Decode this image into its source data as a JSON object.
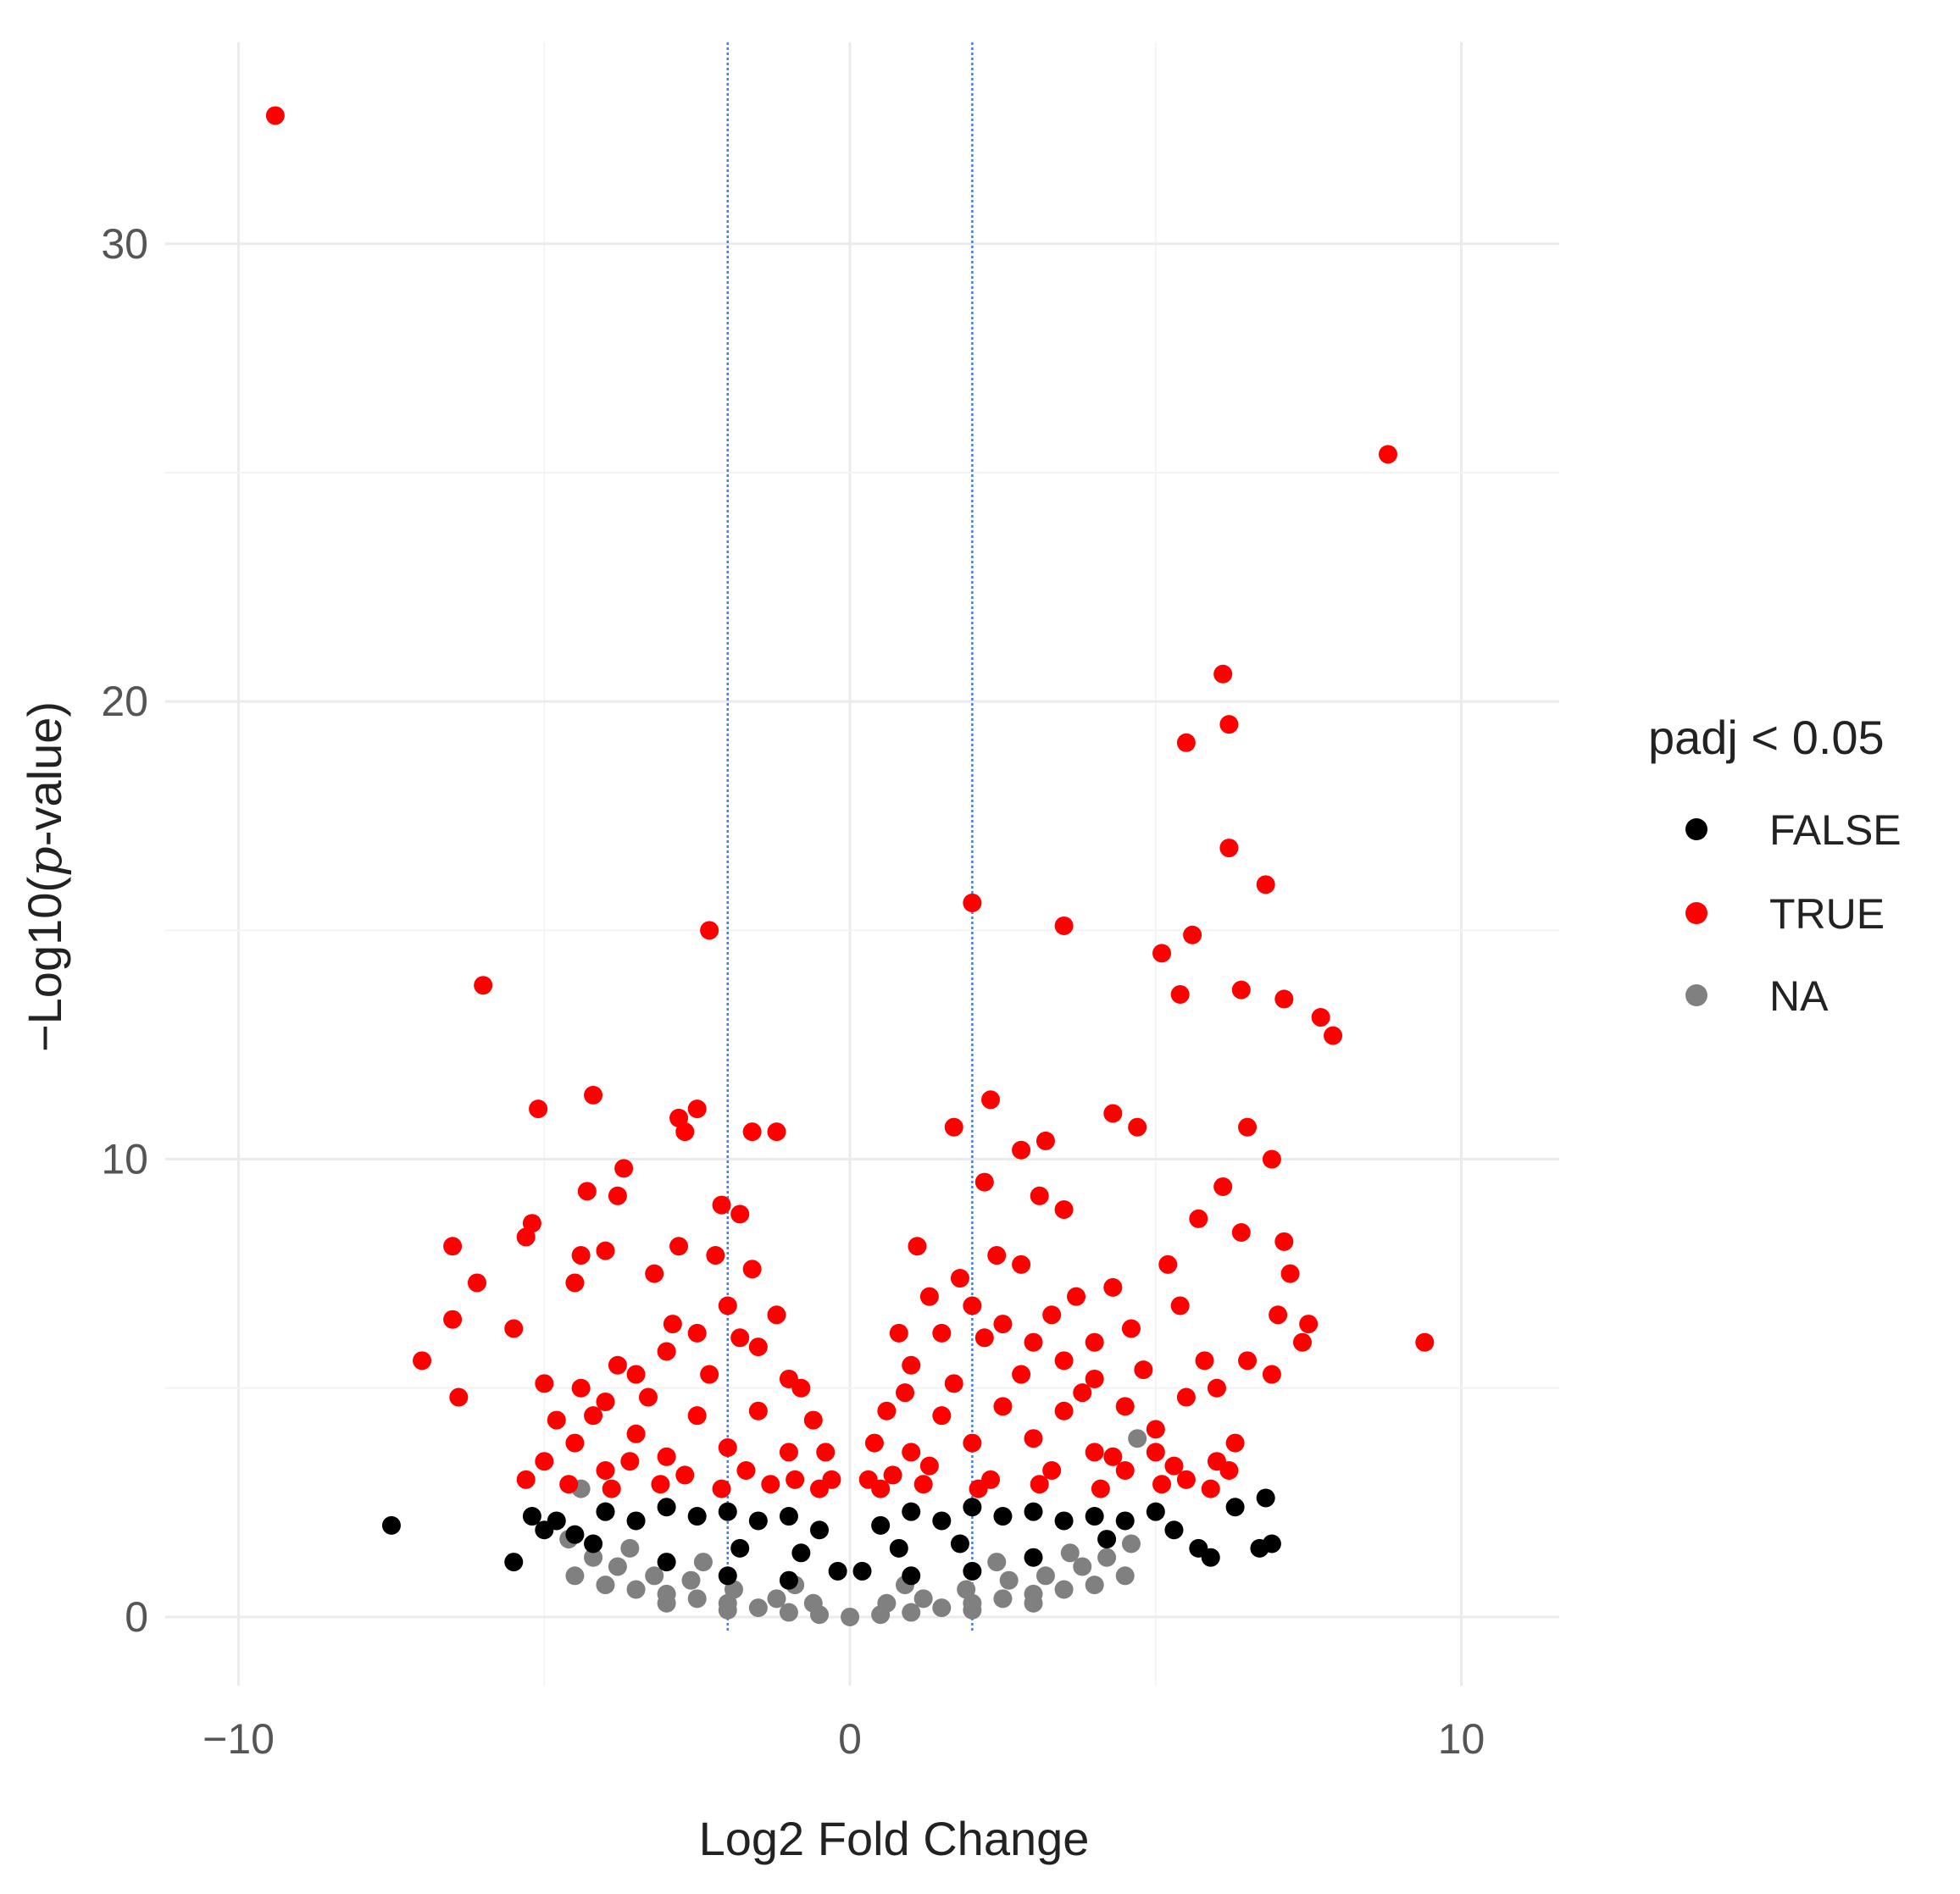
{
  "chart_data": {
    "type": "scatter",
    "title": "",
    "xlabel": "Log2 Fold Change",
    "ylabel_prefix": "−Log10(",
    "ylabel_italic": "p",
    "ylabel_suffix": "-value)",
    "xlim": [
      -11.2,
      11.6
    ],
    "ylim": [
      -1.5,
      34.4
    ],
    "xticks": [
      -10,
      0,
      10
    ],
    "xtick_labels": [
      "−10",
      "0",
      "10"
    ],
    "yticks": [
      0,
      10,
      20,
      30
    ],
    "ytick_labels": [
      "0",
      "10",
      "20",
      "30"
    ],
    "grid": true,
    "threshold_lines": {
      "x": [
        -2,
        2
      ],
      "color": "#4a7bd6",
      "style": "dotted"
    },
    "legend": {
      "title": "padj < 0.05",
      "placement": "right",
      "entries": [
        {
          "label": "FALSE",
          "color": "#000000"
        },
        {
          "label": "TRUE",
          "color": "#ff0000"
        },
        {
          "label": "NA",
          "color": "#808080"
        }
      ]
    },
    "series": [
      {
        "name": "FALSE",
        "color": "#000000",
        "points": [
          [
            -7.5,
            2.0
          ],
          [
            -5.5,
            1.2
          ],
          [
            -5.2,
            2.2
          ],
          [
            -5.0,
            1.9
          ],
          [
            -4.8,
            2.1
          ],
          [
            -4.5,
            1.8
          ],
          [
            -4.0,
            2.3
          ],
          [
            -3.5,
            2.1
          ],
          [
            -3.0,
            2.4
          ],
          [
            -2.5,
            2.2
          ],
          [
            -2.0,
            2.3
          ],
          [
            -1.5,
            2.1
          ],
          [
            -1.0,
            2.2
          ],
          [
            -0.5,
            1.9
          ],
          [
            -0.2,
            1.0
          ],
          [
            0.2,
            1.0
          ],
          [
            0.5,
            2.0
          ],
          [
            1.0,
            2.3
          ],
          [
            1.5,
            2.1
          ],
          [
            2.0,
            2.4
          ],
          [
            2.5,
            2.2
          ],
          [
            3.0,
            2.3
          ],
          [
            3.5,
            2.1
          ],
          [
            4.0,
            2.2
          ],
          [
            4.5,
            2.1
          ],
          [
            5.0,
            2.3
          ],
          [
            5.3,
            1.9
          ],
          [
            5.7,
            1.5
          ],
          [
            5.9,
            1.3
          ],
          [
            6.3,
            2.4
          ],
          [
            6.8,
            2.6
          ],
          [
            6.9,
            1.6
          ],
          [
            6.7,
            1.5
          ],
          [
            -3.0,
            1.2
          ],
          [
            -2.0,
            0.9
          ],
          [
            -1.0,
            0.8
          ],
          [
            1.0,
            0.9
          ],
          [
            2.0,
            1.0
          ],
          [
            3.0,
            1.3
          ],
          [
            -4.2,
            1.6
          ],
          [
            4.2,
            1.7
          ],
          [
            -1.8,
            1.5
          ],
          [
            1.8,
            1.6
          ],
          [
            -0.8,
            1.4
          ],
          [
            0.8,
            1.5
          ]
        ]
      },
      {
        "name": "TRUE",
        "color": "#ff0000",
        "points": [
          [
            -9.4,
            32.8
          ],
          [
            8.8,
            25.4
          ],
          [
            6.1,
            20.6
          ],
          [
            6.2,
            19.5
          ],
          [
            5.5,
            19.1
          ],
          [
            6.2,
            16.8
          ],
          [
            6.8,
            16.0
          ],
          [
            2.0,
            15.6
          ],
          [
            3.5,
            15.1
          ],
          [
            -2.3,
            15.0
          ],
          [
            5.6,
            14.9
          ],
          [
            5.1,
            14.5
          ],
          [
            -6.0,
            13.8
          ],
          [
            6.4,
            13.7
          ],
          [
            5.4,
            13.6
          ],
          [
            7.1,
            13.5
          ],
          [
            7.7,
            13.1
          ],
          [
            7.9,
            12.7
          ],
          [
            -5.1,
            11.1
          ],
          [
            -4.2,
            11.4
          ],
          [
            2.3,
            11.3
          ],
          [
            -2.5,
            11.1
          ],
          [
            4.3,
            11.0
          ],
          [
            -2.8,
            10.9
          ],
          [
            -2.7,
            10.6
          ],
          [
            1.7,
            10.7
          ],
          [
            -1.6,
            10.6
          ],
          [
            -1.2,
            10.6
          ],
          [
            4.7,
            10.7
          ],
          [
            6.5,
            10.7
          ],
          [
            3.2,
            10.4
          ],
          [
            2.8,
            10.2
          ],
          [
            6.9,
            10.0
          ],
          [
            -3.7,
            9.8
          ],
          [
            -4.3,
            9.3
          ],
          [
            -3.8,
            9.2
          ],
          [
            2.2,
            9.5
          ],
          [
            3.1,
            9.2
          ],
          [
            6.1,
            9.4
          ],
          [
            -2.1,
            9.0
          ],
          [
            -1.8,
            8.8
          ],
          [
            3.5,
            8.9
          ],
          [
            5.7,
            8.7
          ],
          [
            -6.5,
            8.1
          ],
          [
            -5.2,
            8.6
          ],
          [
            -5.3,
            8.3
          ],
          [
            -4.4,
            7.9
          ],
          [
            -4.0,
            8.0
          ],
          [
            7.1,
            8.2
          ],
          [
            -6.1,
            7.3
          ],
          [
            -4.5,
            7.3
          ],
          [
            7.2,
            7.5
          ],
          [
            -6.5,
            6.5
          ],
          [
            -5.5,
            6.3
          ],
          [
            7.0,
            6.6
          ],
          [
            7.5,
            6.4
          ],
          [
            -7.0,
            5.6
          ],
          [
            9.4,
            6.0
          ],
          [
            7.4,
            6.0
          ],
          [
            -6.4,
            4.8
          ],
          [
            -5.0,
            5.1
          ],
          [
            -4.4,
            5.0
          ],
          [
            -4.0,
            4.7
          ],
          [
            -3.5,
            5.3
          ],
          [
            -3.0,
            5.8
          ],
          [
            -2.5,
            6.2
          ],
          [
            -2.0,
            6.8
          ],
          [
            -1.5,
            5.9
          ],
          [
            -1.0,
            5.2
          ],
          [
            -0.6,
            4.3
          ],
          [
            -0.4,
            3.6
          ],
          [
            -0.3,
            3.0
          ],
          [
            0.3,
            3.0
          ],
          [
            0.4,
            3.8
          ],
          [
            0.6,
            4.5
          ],
          [
            1.0,
            5.5
          ],
          [
            1.5,
            6.2
          ],
          [
            2.0,
            6.8
          ],
          [
            2.5,
            6.4
          ],
          [
            3.0,
            6.0
          ],
          [
            3.5,
            5.6
          ],
          [
            4.0,
            5.2
          ],
          [
            4.5,
            4.6
          ],
          [
            5.0,
            4.1
          ],
          [
            5.5,
            4.8
          ],
          [
            6.0,
            5.0
          ],
          [
            6.5,
            5.6
          ],
          [
            6.9,
            5.3
          ],
          [
            -5.0,
            3.4
          ],
          [
            -4.5,
            3.8
          ],
          [
            -4.0,
            3.2
          ],
          [
            -3.5,
            4.0
          ],
          [
            -3.0,
            3.5
          ],
          [
            -2.5,
            4.4
          ],
          [
            -2.0,
            3.7
          ],
          [
            -1.5,
            4.5
          ],
          [
            -1.0,
            3.6
          ],
          [
            1.0,
            3.6
          ],
          [
            1.5,
            4.4
          ],
          [
            2.0,
            3.8
          ],
          [
            2.5,
            4.6
          ],
          [
            3.0,
            3.9
          ],
          [
            3.5,
            4.5
          ],
          [
            4.0,
            3.6
          ],
          [
            4.5,
            3.2
          ],
          [
            5.0,
            3.6
          ],
          [
            5.5,
            3.0
          ],
          [
            6.0,
            3.4
          ],
          [
            -3.2,
            7.5
          ],
          [
            -2.8,
            8.1
          ],
          [
            -2.2,
            7.9
          ],
          [
            -1.6,
            7.6
          ],
          [
            1.1,
            8.1
          ],
          [
            1.8,
            7.4
          ],
          [
            2.4,
            7.9
          ],
          [
            2.8,
            7.7
          ],
          [
            3.7,
            7.0
          ],
          [
            4.3,
            7.2
          ],
          [
            4.6,
            6.3
          ],
          [
            5.2,
            7.7
          ],
          [
            5.4,
            6.8
          ],
          [
            6.4,
            8.4
          ],
          [
            -2.9,
            6.4
          ],
          [
            -1.8,
            6.1
          ],
          [
            -1.2,
            6.6
          ],
          [
            0.8,
            6.2
          ],
          [
            1.3,
            7.0
          ],
          [
            2.2,
            6.1
          ],
          [
            3.3,
            6.6
          ],
          [
            4.0,
            6.0
          ],
          [
            -3.8,
            5.5
          ],
          [
            -3.3,
            4.8
          ],
          [
            -2.3,
            5.3
          ],
          [
            -0.8,
            5.0
          ],
          [
            0.9,
            4.9
          ],
          [
            1.7,
            5.1
          ],
          [
            2.8,
            5.3
          ],
          [
            3.8,
            4.9
          ],
          [
            4.8,
            5.4
          ],
          [
            5.8,
            5.6
          ],
          [
            -4.8,
            4.3
          ],
          [
            -4.2,
            4.4
          ],
          [
            -3.6,
            3.4
          ],
          [
            -2.7,
            3.1
          ],
          [
            -1.7,
            3.2
          ],
          [
            -0.9,
            3.0
          ],
          [
            0.7,
            3.1
          ],
          [
            1.3,
            3.3
          ],
          [
            2.3,
            3.0
          ],
          [
            3.3,
            3.2
          ],
          [
            4.3,
            3.5
          ],
          [
            5.3,
            3.3
          ],
          [
            6.3,
            3.8
          ],
          [
            -5.3,
            3.0
          ],
          [
            -4.6,
            2.9
          ],
          [
            -3.9,
            2.8
          ],
          [
            -3.1,
            2.9
          ],
          [
            -2.1,
            2.8
          ],
          [
            -1.3,
            2.9
          ],
          [
            -0.5,
            2.8
          ],
          [
            0.5,
            2.8
          ],
          [
            1.2,
            2.9
          ],
          [
            2.1,
            2.8
          ],
          [
            3.1,
            2.9
          ],
          [
            4.1,
            2.8
          ],
          [
            5.1,
            2.9
          ],
          [
            5.9,
            2.8
          ],
          [
            6.2,
            3.2
          ]
        ]
      },
      {
        "name": "NA",
        "color": "#808080",
        "points": [
          [
            -4.5,
            0.9
          ],
          [
            -4.0,
            0.7
          ],
          [
            -3.5,
            0.6
          ],
          [
            -3.0,
            0.5
          ],
          [
            -2.5,
            0.4
          ],
          [
            -2.0,
            0.3
          ],
          [
            -1.5,
            0.2
          ],
          [
            -1.0,
            0.1
          ],
          [
            -0.5,
            0.05
          ],
          [
            0.0,
            0.0
          ],
          [
            0.5,
            0.05
          ],
          [
            1.0,
            0.1
          ],
          [
            1.5,
            0.2
          ],
          [
            2.0,
            0.3
          ],
          [
            2.5,
            0.4
          ],
          [
            3.0,
            0.5
          ],
          [
            3.5,
            0.6
          ],
          [
            4.0,
            0.7
          ],
          [
            4.5,
            0.9
          ],
          [
            -4.2,
            1.3
          ],
          [
            -3.8,
            1.1
          ],
          [
            -3.2,
            0.9
          ],
          [
            -2.6,
            0.8
          ],
          [
            -1.9,
            0.6
          ],
          [
            -1.2,
            0.4
          ],
          [
            -0.6,
            0.3
          ],
          [
            0.6,
            0.3
          ],
          [
            1.2,
            0.4
          ],
          [
            1.9,
            0.6
          ],
          [
            2.6,
            0.8
          ],
          [
            3.2,
            0.9
          ],
          [
            3.8,
            1.1
          ],
          [
            4.2,
            1.3
          ],
          [
            -4.4,
            2.8
          ],
          [
            4.7,
            3.9
          ],
          [
            -4.6,
            1.7
          ],
          [
            4.6,
            1.6
          ],
          [
            -3.6,
            1.5
          ],
          [
            3.6,
            1.4
          ],
          [
            -2.4,
            1.2
          ],
          [
            2.4,
            1.2
          ],
          [
            -0.9,
            0.7
          ],
          [
            0.9,
            0.7
          ],
          [
            -3.0,
            0.3
          ],
          [
            3.0,
            0.3
          ],
          [
            -2.0,
            0.15
          ],
          [
            2.0,
            0.15
          ],
          [
            -4.0,
            2.3
          ]
        ]
      }
    ]
  }
}
